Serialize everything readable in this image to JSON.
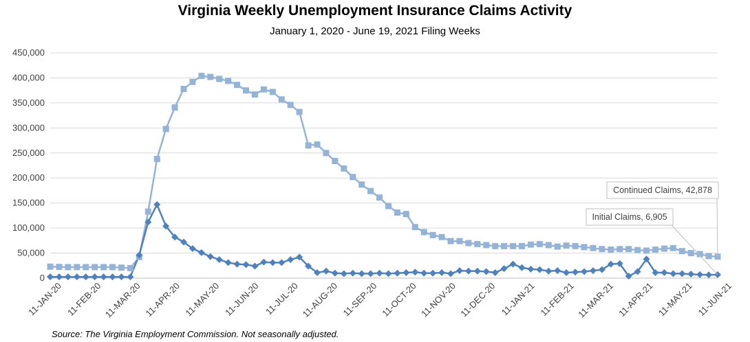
{
  "chart_data": {
    "type": "line",
    "title": "Virginia Weekly Unemployment Insurance Claims Activity",
    "subtitle": "January 1, 2020 - June 19, 2021 Filing Weeks",
    "source": "Source: The Virginia Employment Commission. Not seasonally adjusted.",
    "ylim": [
      0,
      450000
    ],
    "yticks": [
      0,
      50000,
      100000,
      150000,
      200000,
      250000,
      300000,
      350000,
      400000,
      450000
    ],
    "ytick_labels": [
      "0",
      "50,000",
      "100,000",
      "150,000",
      "200,000",
      "250,000",
      "300,000",
      "350,000",
      "400,000",
      "450,000"
    ],
    "xtick_labels": [
      "11-JAN-20",
      "11-FEB-20",
      "11-MAR-20",
      "11-APR-20",
      "11-MAY-20",
      "11-JUN-20",
      "11-JUL-20",
      "11-AUG-20",
      "11-SEP-20",
      "11-OCT-20",
      "11-NOV-20",
      "11-DEC-20",
      "11-JAN-21",
      "11-FEB-21",
      "11-MAR-21",
      "11-APR-21",
      "11-MAY-21",
      "11-JUN-21"
    ],
    "grid": true,
    "series": [
      {
        "name": "Continued Claims",
        "color": "#95b3d7",
        "marker": "square",
        "annotation": "Continued Claims, 42,878",
        "values": [
          23000,
          22500,
          22000,
          22000,
          22000,
          22000,
          22000,
          22000,
          21000,
          20000,
          42000,
          133000,
          238000,
          298000,
          341000,
          378000,
          392000,
          404000,
          402000,
          398000,
          394000,
          386000,
          375000,
          367000,
          377000,
          372000,
          357000,
          346000,
          332000,
          265000,
          267000,
          250000,
          234000,
          219000,
          202000,
          187000,
          174000,
          161000,
          144000,
          131000,
          128000,
          102000,
          92000,
          86000,
          82000,
          74000,
          74000,
          70000,
          68000,
          66000,
          64000,
          64000,
          64000,
          64000,
          67000,
          68000,
          66000,
          63000,
          65000,
          64000,
          62000,
          60000,
          58000,
          57000,
          58000,
          58000,
          56000,
          55000,
          57000,
          59000,
          60000,
          54000,
          50000,
          48000,
          44000,
          42878
        ]
      },
      {
        "name": "Initial Claims",
        "color": "#4f81bd",
        "marker": "diamond",
        "annotation": "Initial Claims, 6,905",
        "values": [
          2500,
          2500,
          2500,
          2500,
          2500,
          2500,
          2500,
          2500,
          2500,
          2500,
          46000,
          112000,
          147000,
          104000,
          82000,
          72000,
          59000,
          51000,
          43000,
          37000,
          31000,
          28000,
          27000,
          24000,
          32000,
          31000,
          31000,
          37000,
          42000,
          24000,
          11000,
          14000,
          10000,
          9000,
          10000,
          9000,
          9000,
          10000,
          9000,
          10000,
          11000,
          12000,
          10000,
          10000,
          11000,
          9000,
          15000,
          14000,
          14000,
          13000,
          11000,
          19000,
          28000,
          21000,
          18000,
          17000,
          14000,
          15000,
          11000,
          12000,
          13000,
          15000,
          17000,
          28000,
          29000,
          4000,
          13000,
          38000,
          11000,
          11000,
          9000,
          9000,
          8000,
          7000,
          6500,
          6905
        ]
      }
    ]
  }
}
